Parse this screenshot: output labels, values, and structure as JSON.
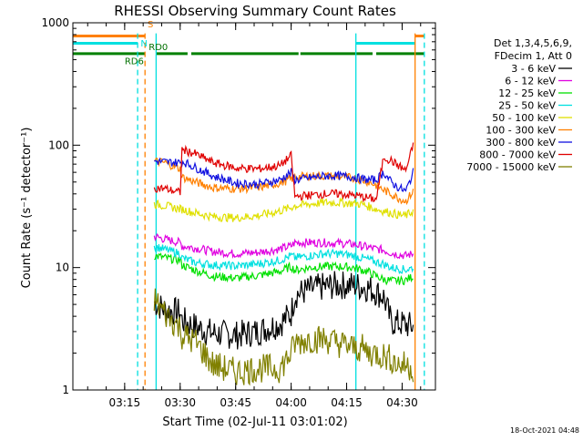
{
  "chart_data": {
    "type": "line",
    "title": "RHESSI Observing Summary Count Rates",
    "xlabel": "Start Time (02-Jul-11 03:01:02)",
    "ylabel": "Count Rate (s⁻¹ detector⁻¹)",
    "y_scale": "log",
    "ylim": [
      1,
      1000
    ],
    "xlim_minutes": [
      0,
      98
    ],
    "x_ticks": [
      {
        "label": "03:15",
        "min": 14
      },
      {
        "label": "03:30",
        "min": 29
      },
      {
        "label": "03:45",
        "min": 44
      },
      {
        "label": "04:00",
        "min": 59
      },
      {
        "label": "04:15",
        "min": 74
      },
      {
        "label": "04:30",
        "min": 89
      }
    ],
    "y_ticks": [
      {
        "label": "1",
        "value": 1
      },
      {
        "label": "10",
        "value": 10
      },
      {
        "label": "100",
        "value": 100
      },
      {
        "label": "1000",
        "value": 1000
      }
    ],
    "legend_header": [
      "Det 1,3,4,5,6,9,",
      "FDecim 1, Att 0"
    ],
    "legend_placement": "right",
    "series": [
      {
        "name": "3 - 6 keV",
        "color": "#000000",
        "x": [
          22,
          25,
          29,
          29.5,
          33,
          38,
          44,
          50,
          56,
          59,
          60,
          64,
          68,
          72,
          76,
          78,
          80,
          82,
          84,
          86,
          88,
          90,
          92
        ],
        "y": [
          5.2,
          4.5,
          4.3,
          3.7,
          3.3,
          2.9,
          2.8,
          3.0,
          3.5,
          4.2,
          6.0,
          6.6,
          7.0,
          7.2,
          7.2,
          7.0,
          6.8,
          6.3,
          5.8,
          3.6,
          3.5,
          3.4,
          3.3
        ]
      },
      {
        "name": "6 - 12 keV",
        "color": "#e000e0",
        "x": [
          22,
          25,
          29,
          29.5,
          33,
          38,
          44,
          50,
          56,
          59,
          60,
          64,
          68,
          72,
          76,
          78,
          80,
          82,
          84,
          86,
          88,
          90,
          92
        ],
        "y": [
          18,
          17,
          16,
          15,
          14.5,
          13.5,
          13,
          13.3,
          14.2,
          15,
          16,
          16,
          16,
          15.8,
          15.5,
          15,
          14.6,
          14.2,
          13.9,
          13.2,
          12.8,
          12.5,
          13
        ]
      },
      {
        "name": "12 - 25 keV",
        "color": "#00e000",
        "x": [
          22,
          25,
          29,
          29.5,
          33,
          38,
          44,
          50,
          56,
          59,
          60,
          64,
          68,
          72,
          76,
          78,
          80,
          82,
          84,
          86,
          88,
          90,
          92
        ],
        "y": [
          12.5,
          12,
          11.5,
          10.5,
          9.5,
          8.5,
          8.2,
          8.6,
          9.3,
          10.2,
          9.5,
          10,
          10.2,
          10.2,
          10,
          9.6,
          9.2,
          8.5,
          8.0,
          7.8,
          7.8,
          7.9,
          8.5
        ]
      },
      {
        "name": "25 - 50 keV",
        "color": "#00e0e0",
        "x": [
          22,
          25,
          29,
          29.5,
          33,
          38,
          44,
          50,
          56,
          59,
          60,
          64,
          68,
          72,
          76,
          78,
          80,
          82,
          84,
          86,
          88,
          90,
          92
        ],
        "y": [
          15,
          14,
          13,
          12,
          11,
          10.5,
          10.3,
          10.7,
          11.5,
          12.5,
          12,
          12.5,
          13,
          13,
          12.5,
          12,
          11.6,
          11.1,
          10.7,
          10.0,
          9.8,
          9.6,
          10
        ]
      },
      {
        "name": "50 - 100 keV",
        "color": "#e0e000",
        "x": [
          22,
          25,
          29,
          29.5,
          33,
          38,
          44,
          50,
          56,
          59,
          60,
          64,
          68,
          72,
          76,
          78,
          80,
          82,
          84,
          86,
          88,
          90,
          92
        ],
        "y": [
          33,
          32,
          30,
          30,
          28,
          26,
          25.5,
          26.5,
          29,
          31,
          32,
          33,
          34,
          34,
          33.5,
          33,
          31.5,
          30,
          29,
          28,
          27,
          26.5,
          29
        ]
      },
      {
        "name": "100 - 300 keV",
        "color": "#ff8000",
        "x": [
          22,
          25,
          29,
          29.5,
          33,
          38,
          44,
          50,
          56,
          59,
          60,
          64,
          68,
          72,
          76,
          78,
          80,
          82,
          84,
          86,
          88,
          90,
          92
        ],
        "y": [
          74,
          72,
          64,
          55,
          50,
          45,
          44,
          45,
          49,
          53,
          55,
          56,
          56,
          55.5,
          54,
          52,
          50,
          47,
          43,
          40,
          37,
          35,
          42
        ]
      },
      {
        "name": "300 - 800 keV",
        "color": "#1010e0",
        "x": [
          22,
          25,
          29,
          29.5,
          33,
          38,
          44,
          50,
          56,
          59,
          60,
          64,
          68,
          72,
          76,
          78,
          80,
          82,
          84,
          86,
          88,
          90,
          92
        ],
        "y": [
          74,
          73,
          72,
          74,
          66,
          56,
          49,
          48,
          52,
          60,
          52,
          54,
          56,
          56,
          55,
          53,
          52,
          52,
          60,
          50,
          45,
          42,
          60
        ]
      },
      {
        "name": "800 - 7000 keV",
        "color": "#e00000",
        "x": [
          22,
          25,
          29,
          29.5,
          33,
          38,
          44,
          50,
          56,
          59,
          60,
          64,
          68,
          72,
          76,
          78,
          80,
          82,
          84,
          86,
          88,
          90,
          92
        ],
        "y": [
          45,
          44,
          41,
          92,
          85,
          72,
          65,
          64,
          68,
          82,
          38,
          39,
          40,
          40,
          39,
          38,
          37,
          36,
          80,
          75,
          68,
          62,
          100
        ]
      },
      {
        "name": "7000 - 15000 keV",
        "color": "#808000",
        "x": [
          22,
          25,
          29,
          29.5,
          33,
          38,
          44,
          50,
          56,
          59,
          60,
          64,
          68,
          72,
          76,
          78,
          80,
          82,
          84,
          86,
          88,
          90,
          92
        ],
        "y": [
          5.5,
          4.2,
          3.2,
          2.8,
          2.5,
          1.6,
          1.4,
          1.5,
          1.5,
          2.0,
          2.4,
          2.6,
          2.6,
          2.4,
          2.2,
          2.2,
          2.0,
          2.0,
          1.9,
          1.8,
          1.6,
          1.6,
          1.5
        ]
      }
    ],
    "annotations": [
      {
        "text": "S",
        "color": "#ff8000"
      },
      {
        "text": "N",
        "color": "#00e0e0"
      },
      {
        "text": "RD0",
        "color": "#007000"
      },
      {
        "text": "RD6",
        "color": "#007000"
      }
    ],
    "status_bars": {
      "saa": {
        "color": "#ff8000",
        "y_value": 780,
        "x_ranges": [
          [
            0,
            19.5
          ],
          [
            92.5,
            95
          ]
        ]
      },
      "night": {
        "color": "#00e0e0",
        "y_value": 680,
        "x_ranges": [
          [
            0,
            17.5
          ],
          [
            76.5,
            92.5
          ]
        ]
      },
      "decim": {
        "color": "#008000",
        "y_value": 560,
        "x_ranges": [
          [
            0,
            19.5
          ],
          [
            22.5,
            31
          ],
          [
            32,
            61
          ],
          [
            61.5,
            81
          ],
          [
            82,
            95
          ]
        ]
      }
    },
    "vertical_markers": [
      {
        "min": 17.5,
        "color": "#00e0e0",
        "style": "dashed"
      },
      {
        "min": 19.5,
        "color": "#ff8000",
        "style": "dashed"
      },
      {
        "min": 22.5,
        "color": "#00e0e0",
        "style": "solid"
      },
      {
        "min": 76.5,
        "color": "#00e0e0",
        "style": "solid"
      },
      {
        "min": 92.5,
        "color": "#ff8000",
        "style": "solid"
      },
      {
        "min": 95,
        "color": "#00e0e0",
        "style": "dashed"
      }
    ],
    "footer": "18-Oct-2021 04:48"
  }
}
